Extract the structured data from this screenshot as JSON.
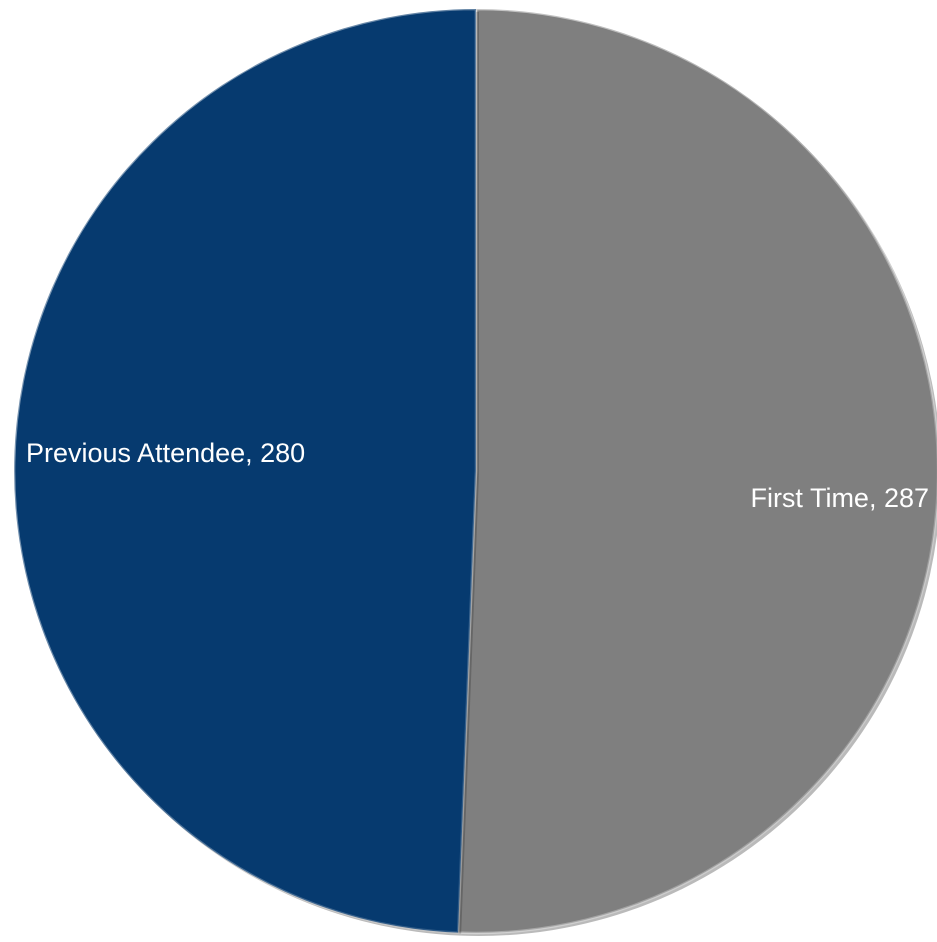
{
  "chart_data": {
    "type": "pie",
    "categories": [
      "First Time",
      "Previous Attendee"
    ],
    "values": [
      287,
      280
    ],
    "data_labels": [
      "First Time, 287",
      "Previous Attendee, 280"
    ],
    "colors": [
      "#7f7f7f",
      "#063a6f"
    ],
    "start": "12 o'clock",
    "direction": "clockwise",
    "legend": "none",
    "title": ""
  }
}
